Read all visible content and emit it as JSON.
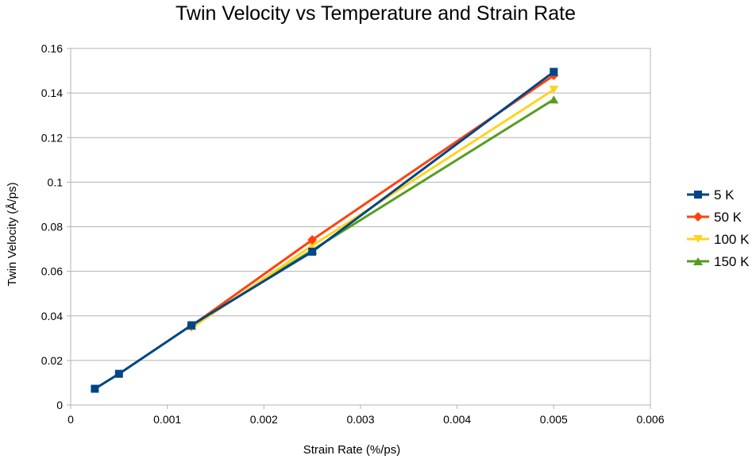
{
  "chart_data": {
    "type": "line",
    "title": "Twin Velocity vs Temperature and Strain Rate",
    "xlabel": "Strain Rate (%/ps)",
    "ylabel": "Twin Velocity (Å/ps)",
    "xlim": [
      0,
      0.006
    ],
    "ylim": [
      0,
      0.16
    ],
    "x_ticks": [
      "0",
      "0.001",
      "0.002",
      "0.003",
      "0.004",
      "0.005",
      "0.006"
    ],
    "y_ticks": [
      "0",
      "0.02",
      "0.04",
      "0.06",
      "0.08",
      "0.1",
      "0.12",
      "0.14",
      "0.16"
    ],
    "grid": "horizontal",
    "legend_position": "right",
    "series": [
      {
        "name": "5 K",
        "color": "#004586",
        "marker": "square",
        "x": [
          0.00025,
          0.0005,
          0.00125,
          0.0025,
          0.005
        ],
        "y": [
          0.0073,
          0.014,
          0.0358,
          0.0688,
          0.1495
        ]
      },
      {
        "name": "50 K",
        "color": "#ff420e",
        "marker": "diamond",
        "x": [
          0.00125,
          0.0025,
          0.005
        ],
        "y": [
          0.0355,
          0.0741,
          0.1479
        ]
      },
      {
        "name": "100 K",
        "color": "#ffd320",
        "marker": "triangle-down",
        "x": [
          0.00125,
          0.0025,
          0.005
        ],
        "y": [
          0.0345,
          0.0715,
          0.1415
        ]
      },
      {
        "name": "150 K",
        "color": "#579d1c",
        "marker": "triangle-up",
        "x": [
          0.00125,
          0.0025,
          0.005
        ],
        "y": [
          0.0355,
          0.0695,
          0.1371
        ]
      }
    ]
  }
}
